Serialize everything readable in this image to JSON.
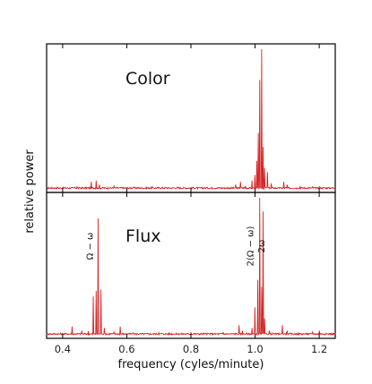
{
  "chart_data": {
    "type": "line",
    "xlabel": "frequency (cyles/minute)",
    "ylabel": "relative power",
    "xlim": [
      0.35,
      1.25
    ],
    "xticks": [
      0.4,
      0.6,
      0.8,
      1.0,
      1.2
    ],
    "xtick_labels": [
      "0.4",
      "0.6",
      "0.8",
      "1.0",
      "1.2"
    ],
    "line_color": "#d62728",
    "panels": [
      {
        "title": "Color",
        "ylim": [
          0,
          1
        ],
        "annotations": [],
        "peaks": [
          [
            0.445,
            0.015
          ],
          [
            0.49,
            0.05
          ],
          [
            0.505,
            0.06
          ],
          [
            0.515,
            0.03
          ],
          [
            0.56,
            0.02
          ],
          [
            0.62,
            0.012
          ],
          [
            0.68,
            0.015
          ],
          [
            0.76,
            0.012
          ],
          [
            0.85,
            0.012
          ],
          [
            0.94,
            0.03
          ],
          [
            0.955,
            0.05
          ],
          [
            0.97,
            0.02
          ],
          [
            0.99,
            0.06
          ],
          [
            1.0,
            0.1
          ],
          [
            1.005,
            0.2
          ],
          [
            1.01,
            0.4
          ],
          [
            1.015,
            0.78
          ],
          [
            1.02,
            1.0
          ],
          [
            1.025,
            0.3
          ],
          [
            1.03,
            0.15
          ],
          [
            1.038,
            0.12
          ],
          [
            1.05,
            0.04
          ],
          [
            1.09,
            0.05
          ],
          [
            1.1,
            0.03
          ],
          [
            1.14,
            0.015
          ],
          [
            1.18,
            0.015
          ],
          [
            1.2,
            0.015
          ]
        ]
      },
      {
        "title": "Flux",
        "ylim": [
          0,
          1
        ],
        "annotations": [
          {
            "text": "Ω − ω",
            "x": 0.505
          },
          {
            "text": "2(Ω − ω)",
            "x": 1.005
          },
          {
            "text": "2ω",
            "x": 1.04
          }
        ],
        "peaks": [
          [
            0.43,
            0.06
          ],
          [
            0.46,
            0.03
          ],
          [
            0.48,
            0.025
          ],
          [
            0.495,
            0.28
          ],
          [
            0.505,
            0.32
          ],
          [
            0.51,
            0.85
          ],
          [
            0.52,
            0.33
          ],
          [
            0.53,
            0.05
          ],
          [
            0.56,
            0.02
          ],
          [
            0.58,
            0.06
          ],
          [
            0.62,
            0.015
          ],
          [
            0.7,
            0.015
          ],
          [
            0.8,
            0.015
          ],
          [
            0.9,
            0.02
          ],
          [
            0.95,
            0.07
          ],
          [
            0.96,
            0.03
          ],
          [
            0.99,
            0.05
          ],
          [
            1.0,
            0.2
          ],
          [
            1.008,
            0.4
          ],
          [
            1.015,
            1.0
          ],
          [
            1.02,
            0.35
          ],
          [
            1.025,
            0.9
          ],
          [
            1.03,
            0.12
          ],
          [
            1.045,
            0.03
          ],
          [
            1.085,
            0.07
          ],
          [
            1.1,
            0.03
          ],
          [
            1.18,
            0.02
          ],
          [
            1.2,
            0.03
          ]
        ]
      }
    ]
  }
}
